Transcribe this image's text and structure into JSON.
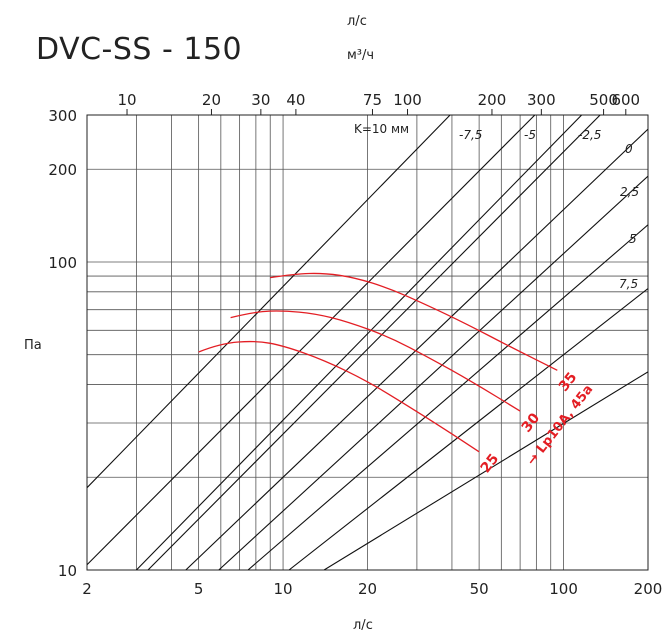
{
  "title": "DVC-SS - 150",
  "units": {
    "top_ls": "л/с",
    "top_m3h": "м³/ч",
    "bottom_ls": "л/с",
    "yaxis": "Па"
  },
  "colors": {
    "grid": "#555555",
    "black": "#111111",
    "red": "#e31e24"
  },
  "chart_data": {
    "type": "line",
    "title": "DVC-SS - 150",
    "x_scale": "log",
    "y_scale": "log",
    "xlim": [
      2,
      200
    ],
    "ylim": [
      10,
      300
    ],
    "xlabel": "л/с",
    "ylabel": "Па",
    "x_ticks": [
      2,
      5,
      10,
      20,
      50,
      100,
      200
    ],
    "x_tick_labels": [
      "2",
      "5",
      "10",
      "20",
      "50",
      "100",
      "200"
    ],
    "y_ticks": [
      10,
      100,
      300
    ],
    "y_tick_labels": [
      "10",
      "100",
      "300"
    ],
    "y_tick_200": "200",
    "y_extra_label_values": [
      200
    ],
    "top_axis_m3h_ticks": [
      10,
      20,
      30,
      40,
      75,
      100,
      200,
      300,
      500,
      600
    ],
    "top_axis_m3h_labels": [
      "10",
      "20",
      "30",
      "40",
      "75",
      "100",
      "200",
      "300",
      "500",
      "600"
    ],
    "x_gridlines": [
      2,
      3,
      4,
      5,
      6,
      7,
      8,
      9,
      10,
      20,
      30,
      40,
      50,
      60,
      70,
      80,
      90,
      100,
      200
    ],
    "y_gridlines": [
      20,
      30,
      40,
      50,
      60,
      70,
      80,
      90,
      100,
      200,
      300
    ],
    "diagonal_lines": [
      {
        "label": "K=10 мм",
        "x0": 2,
        "y0": 18.5,
        "x1": 39.4,
        "y1": 300
      },
      {
        "label": "-7,5",
        "x0": 2,
        "y0": 10.4,
        "x1": 79,
        "y1": 300
      },
      {
        "label": "-5",
        "x0": 3.0,
        "y0": 10,
        "x1": 116,
        "y1": 300
      },
      {
        "label": "-2,5",
        "x0": 3.3,
        "y0": 10,
        "x1": 135,
        "y1": 300
      },
      {
        "label": "0",
        "x0": 4.5,
        "y0": 10,
        "x1": 200,
        "y1": 270
      },
      {
        "label": "2,5",
        "x0": 5.9,
        "y0": 10,
        "x1": 200,
        "y1": 190
      },
      {
        "label": "5",
        "x0": 7.5,
        "y0": 10,
        "x1": 200,
        "y1": 132
      },
      {
        "label": "7,5",
        "x0": 10.5,
        "y0": 10,
        "x1": 200,
        "y1": 82
      },
      {
        "label": "",
        "x0": 14,
        "y0": 10,
        "x1": 200,
        "y1": 44
      }
    ],
    "series": [
      {
        "name": "25",
        "x": [
          5.0,
          6.0,
          8.0,
          10.0,
          14.0,
          20.0,
          28.0,
          38.0,
          50.0
        ],
        "y": [
          51,
          54.5,
          55.5,
          53.5,
          48,
          41,
          34,
          28.5,
          24.2
        ]
      },
      {
        "name": "30",
        "x": [
          6.5,
          8.0,
          10.0,
          13.0,
          17.0,
          24.0,
          33.0,
          48.0,
          70.0
        ],
        "y": [
          66,
          69,
          69.5,
          68,
          64,
          57,
          49,
          40.5,
          32.8
        ]
      },
      {
        "name": "35",
        "x": [
          9.0,
          11.0,
          14.0,
          18.0,
          24.0,
          32.0,
          45.0,
          66.0,
          95.0
        ],
        "y": [
          89,
          91.5,
          92,
          89,
          82,
          73,
          63,
          52.5,
          44.5
        ]
      }
    ],
    "annotation": "→ Lp10A, 45a"
  }
}
